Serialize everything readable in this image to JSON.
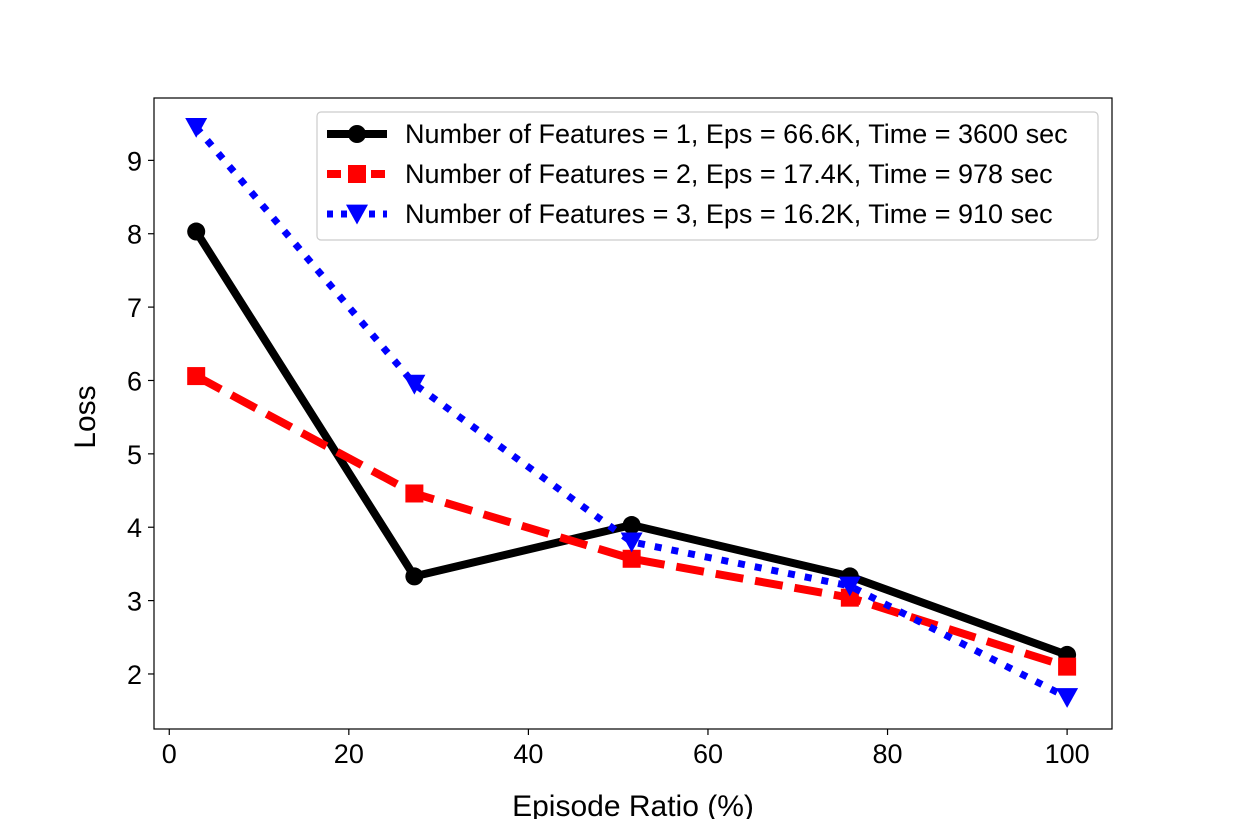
{
  "chart_data": {
    "type": "line",
    "title": "",
    "xlabel": "Episode Ratio (%)",
    "ylabel": "Loss",
    "xlim": [
      -1.7,
      105
    ],
    "ylim": [
      1.25,
      9.85
    ],
    "xticks": [
      0,
      20,
      40,
      60,
      80,
      100
    ],
    "yticks": [
      2,
      3,
      4,
      5,
      6,
      7,
      8,
      9
    ],
    "grid": false,
    "legend_position": "top-right",
    "series": [
      {
        "name": "Number of Features = 1, Eps = 66.6K, Time = 3600 sec",
        "color": "#000000",
        "line_style": "solid",
        "marker": "circle",
        "x": [
          3,
          27.3,
          51.5,
          75.8,
          100
        ],
        "y": [
          8.03,
          3.33,
          4.03,
          3.33,
          2.26
        ]
      },
      {
        "name": "Number of Features = 2, Eps = 17.4K, Time = 978 sec",
        "color": "#ff0000",
        "line_style": "dashed",
        "marker": "square",
        "x": [
          3,
          27.3,
          51.5,
          75.8,
          100
        ],
        "y": [
          6.06,
          4.46,
          3.57,
          3.04,
          2.1
        ]
      },
      {
        "name": "Number of Features = 3, Eps = 16.2K, Time = 910 sec",
        "color": "#0000ff",
        "line_style": "dotted",
        "marker": "triangle-down",
        "x": [
          3,
          27.3,
          51.5,
          75.8,
          100
        ],
        "y": [
          9.45,
          5.95,
          3.8,
          3.2,
          1.68
        ]
      }
    ]
  }
}
